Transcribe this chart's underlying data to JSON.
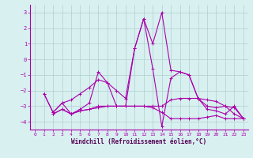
{
  "xlabel": "Windchill (Refroidissement éolien,°C)",
  "background_color": "#d8f0f0",
  "grid_color": "#b0d0d0",
  "line_color": "#aa00aa",
  "xlim": [
    -0.5,
    23.5
  ],
  "ylim": [
    -4.5,
    3.5
  ],
  "yticks": [
    -4,
    -3,
    -2,
    -1,
    0,
    1,
    2,
    3
  ],
  "xticks": [
    0,
    1,
    2,
    3,
    4,
    5,
    6,
    7,
    8,
    9,
    10,
    11,
    12,
    13,
    14,
    15,
    16,
    17,
    18,
    19,
    20,
    21,
    22,
    23
  ],
  "series": [
    [
      null,
      -2.2,
      -3.4,
      -2.8,
      -3.5,
      -3.2,
      -2.8,
      -0.8,
      -1.5,
      -3.0,
      -3.0,
      0.7,
      2.6,
      -0.6,
      -4.3,
      -1.2,
      -0.8,
      -1.0,
      -2.5,
      -3.0,
      -3.1,
      -3.0,
      -3.1,
      -3.8
    ],
    [
      null,
      null,
      -3.5,
      -3.2,
      -3.5,
      -3.3,
      -3.2,
      -3.0,
      -3.0,
      -3.0,
      -3.0,
      -3.0,
      -3.0,
      -3.0,
      -3.0,
      -2.6,
      -2.5,
      -2.5,
      -2.5,
      -2.6,
      -2.7,
      -3.0,
      -3.5,
      -3.8
    ],
    [
      null,
      null,
      -3.5,
      -3.2,
      -3.5,
      -3.3,
      -3.2,
      -3.1,
      -3.0,
      -3.0,
      -3.0,
      -3.0,
      -3.0,
      -3.1,
      -3.4,
      -3.8,
      -3.8,
      -3.8,
      -3.8,
      -3.7,
      -3.6,
      -3.8,
      -3.8,
      -3.8
    ],
    [
      null,
      -2.2,
      -3.4,
      -2.8,
      -2.6,
      -2.2,
      -1.8,
      -1.3,
      -1.5,
      -2.0,
      -2.5,
      0.7,
      2.6,
      1.0,
      3.0,
      -0.7,
      -0.8,
      -1.0,
      -2.5,
      -3.2,
      -3.3,
      -3.5,
      -3.0,
      -3.8
    ]
  ]
}
